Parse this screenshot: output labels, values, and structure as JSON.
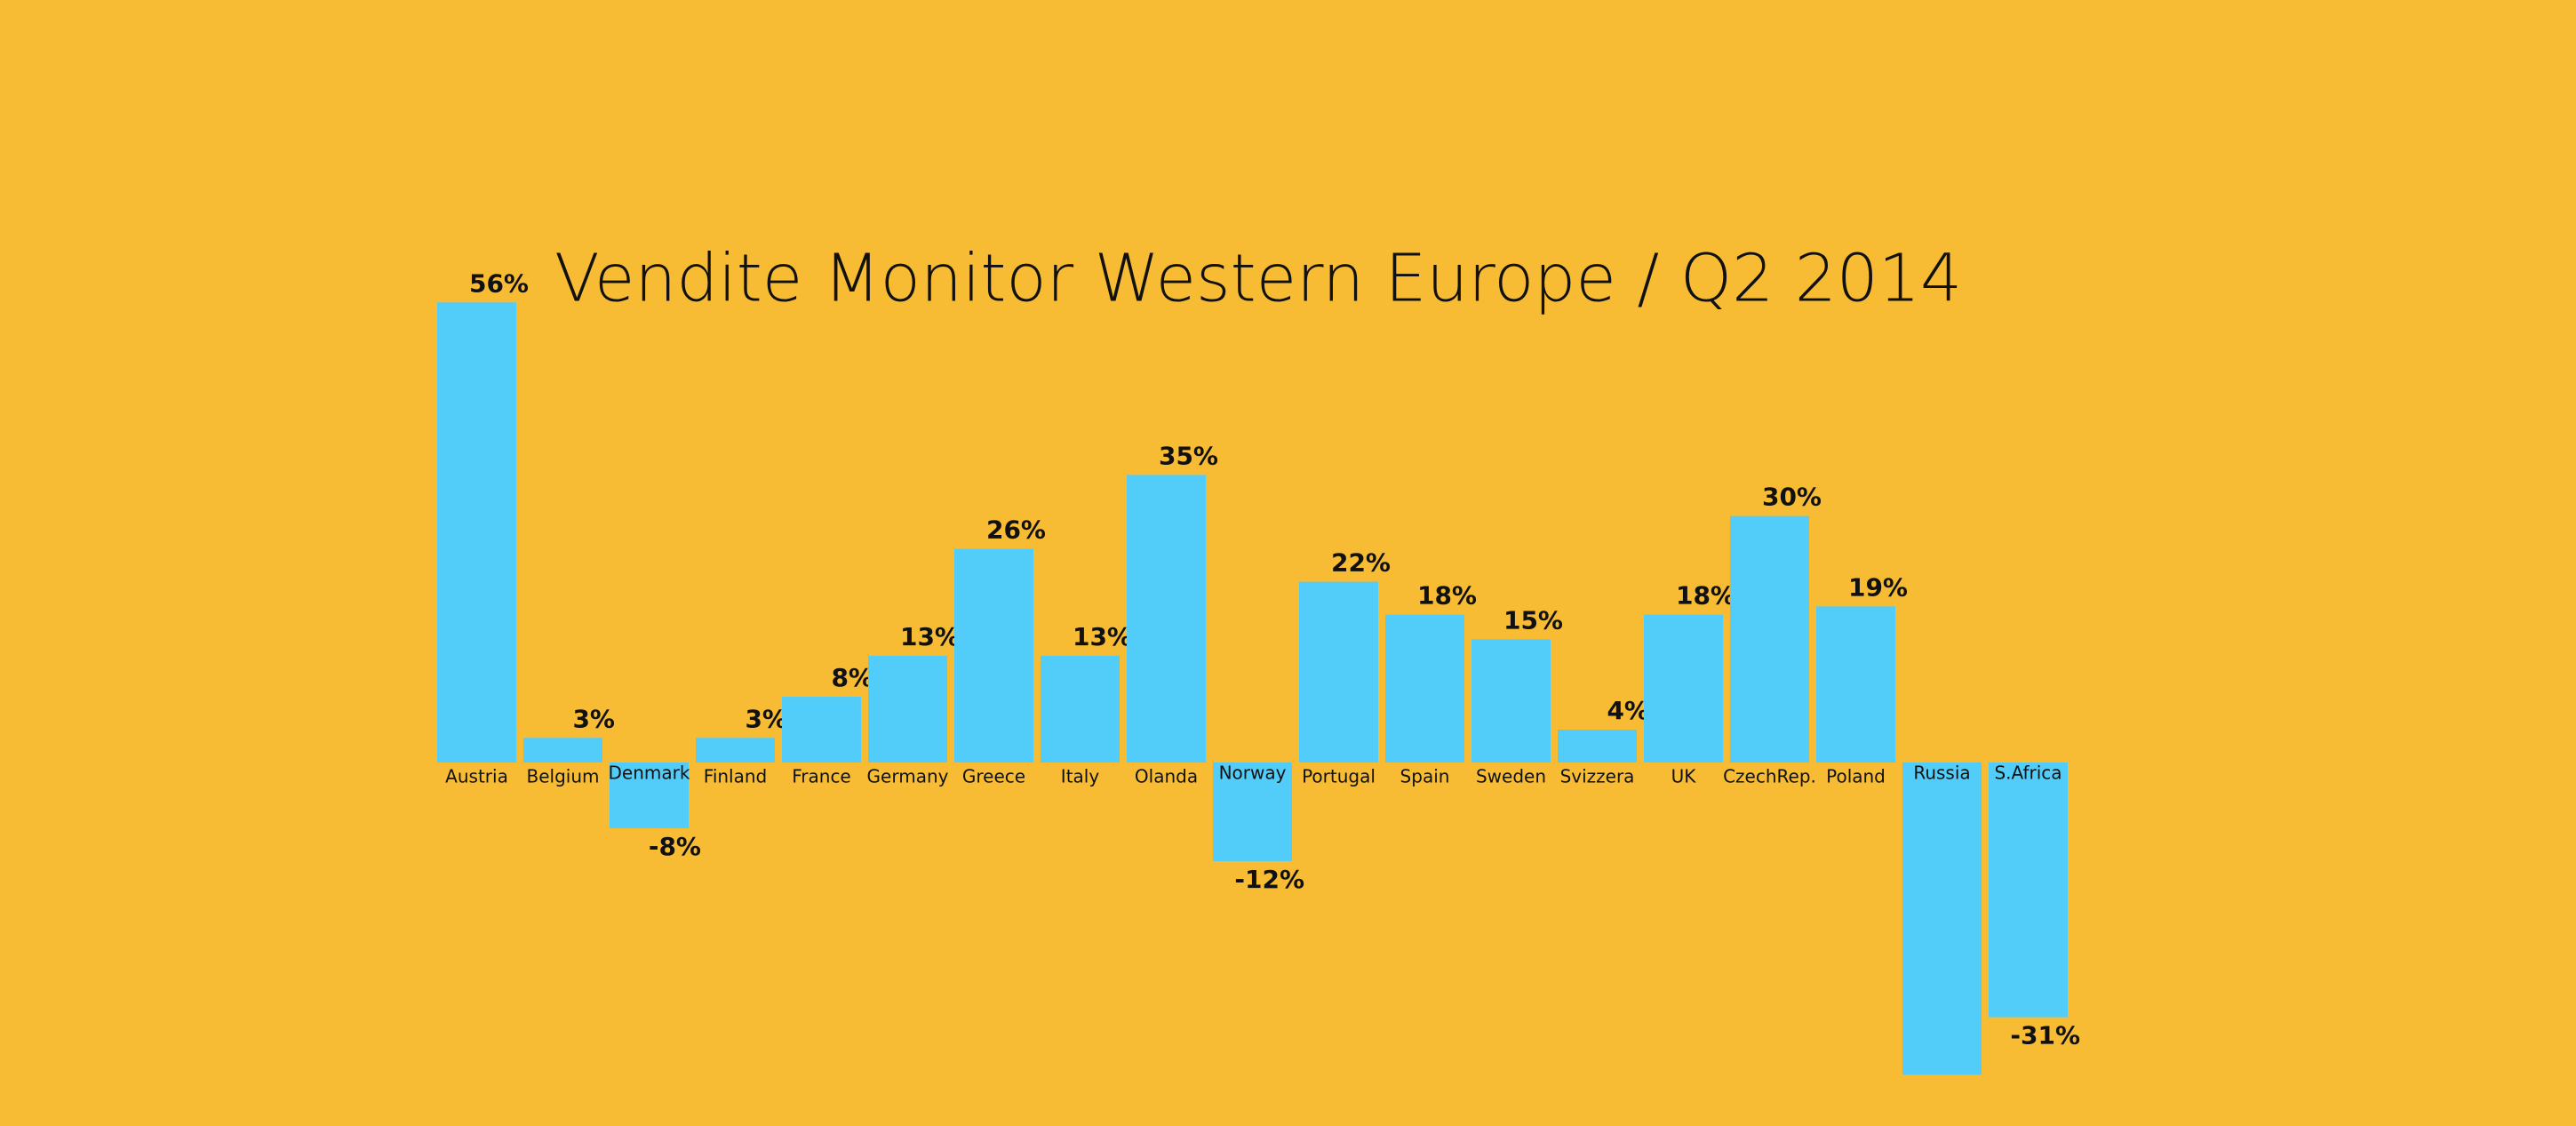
{
  "chart_data": {
    "type": "bar",
    "title": "Vendite Monitor Western Europe / Q2 2014",
    "categories": [
      "Austria",
      "Belgium",
      "Denmark",
      "Finland",
      "France",
      "Germany",
      "Greece",
      "Italy",
      "Olanda",
      "Norway",
      "Portugal",
      "Spain",
      "Sweden",
      "Svizzera",
      "UK",
      "CzechRep.",
      "Poland",
      "Russia",
      "S.Africa"
    ],
    "values": [
      56,
      3,
      -8,
      3,
      8,
      13,
      26,
      13,
      35,
      -12,
      22,
      18,
      15,
      4,
      18,
      30,
      19,
      -38,
      -31
    ],
    "value_labels": [
      "56%",
      "3%",
      "-8%",
      "3%",
      "8%",
      "13%",
      "26%",
      "13%",
      "35%",
      "-12%",
      "22%",
      "18%",
      "15%",
      "4%",
      "18%",
      "30%",
      "19%",
      null,
      "-31%"
    ],
    "color": "#52cdfa"
  }
}
